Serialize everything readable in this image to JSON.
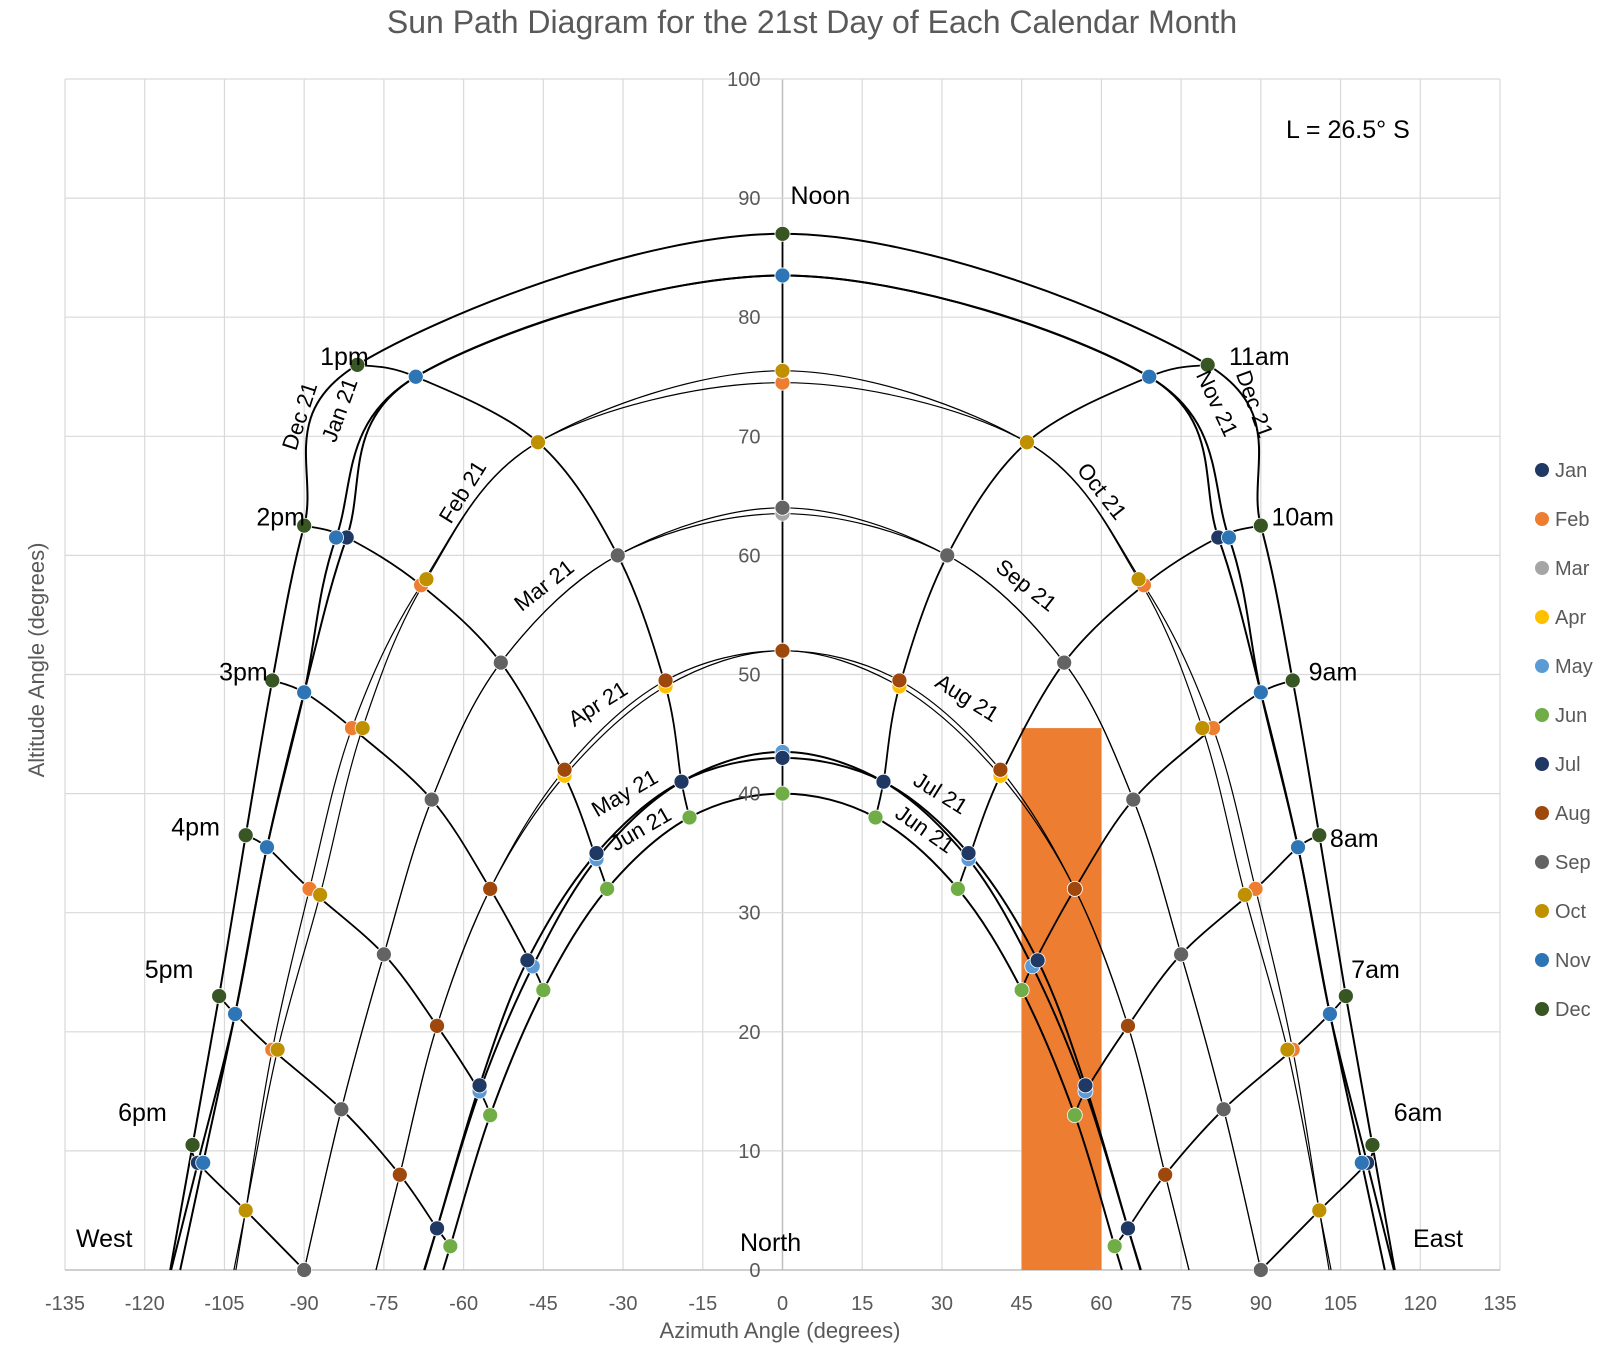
{
  "chart_data": {
    "type": "scatter",
    "title": "Sun Path Diagram for the 21st Day of Each Calendar Month",
    "xlabel": "Azimuth Angle (degrees)",
    "ylabel": "Altitude Angle (degrees)",
    "xlim": [
      -135,
      135
    ],
    "ylim": [
      0,
      100
    ],
    "x_ticks": [
      "-135",
      "-120",
      "-105",
      "-90",
      "-75",
      "-60",
      "-45",
      "-30",
      "-15",
      "0",
      "15",
      "30",
      "45",
      "60",
      "75",
      "90",
      "105",
      "120",
      "135"
    ],
    "y_ticks": [
      "0",
      "10",
      "20",
      "30",
      "40",
      "50",
      "60",
      "70",
      "80",
      "90",
      "100"
    ],
    "grid": true,
    "legend_position": "right",
    "latitude_label": "L = 26.5° S",
    "direction_labels": {
      "west": "West",
      "north": "North",
      "east": "East"
    },
    "hour_labels": [
      "Noon",
      "1pm",
      "2pm",
      "3pm",
      "4pm",
      "5pm",
      "6pm",
      "11am",
      "10am",
      "9am",
      "8am",
      "7am",
      "6am"
    ],
    "hour_label_positions": [
      {
        "label": "Noon",
        "x": 1.5,
        "y": 89.5
      },
      {
        "label": "1pm",
        "x": -87,
        "y": 76
      },
      {
        "label": "2pm",
        "x": -99,
        "y": 62.5
      },
      {
        "label": "3pm",
        "x": -106,
        "y": 49.5
      },
      {
        "label": "4pm",
        "x": -115,
        "y": 36.5
      },
      {
        "label": "5pm",
        "x": -120,
        "y": 24.5
      },
      {
        "label": "6pm",
        "x": -125,
        "y": 12.5
      },
      {
        "label": "11am",
        "x": 84,
        "y": 76
      },
      {
        "label": "10am",
        "x": 92,
        "y": 62.5
      },
      {
        "label": "9am",
        "x": 99,
        "y": 49.5
      },
      {
        "label": "8am",
        "x": 103,
        "y": 35.5
      },
      {
        "label": "7am",
        "x": 107,
        "y": 24.5
      },
      {
        "label": "6am",
        "x": 115,
        "y": 12.5
      }
    ],
    "curve_labels": [
      {
        "label": "Dec 21",
        "x": -89.5,
        "y": 71.5,
        "angle": -72
      },
      {
        "label": "Jan 21",
        "x": -82,
        "y": 72,
        "angle": -70
      },
      {
        "label": "Feb 21",
        "x": -59,
        "y": 65,
        "angle": -58
      },
      {
        "label": "Mar 21",
        "x": -44,
        "y": 57,
        "angle": -38
      },
      {
        "label": "Apr 21",
        "x": -34,
        "y": 47,
        "angle": -32
      },
      {
        "label": "May 21",
        "x": -29,
        "y": 39.5,
        "angle": -30
      },
      {
        "label": "Jun 21",
        "x": -26,
        "y": 36.5,
        "angle": -30
      },
      {
        "label": "Nov 21",
        "x": 80.5,
        "y": 72.5,
        "angle": 65
      },
      {
        "label": "Dec 21",
        "x": 87.5,
        "y": 72.5,
        "angle": 70
      },
      {
        "label": "Oct 21",
        "x": 59,
        "y": 65,
        "angle": 52
      },
      {
        "label": "Sep 21",
        "x": 45,
        "y": 57,
        "angle": 38
      },
      {
        "label": "Aug 21",
        "x": 34,
        "y": 47.5,
        "angle": 32
      },
      {
        "label": "Jul 21",
        "x": 29,
        "y": 39.5,
        "angle": 32
      },
      {
        "label": "Jun 21",
        "x": 26,
        "y": 36.5,
        "angle": 35
      }
    ],
    "highlight_rect": {
      "x_range": [
        45,
        60
      ],
      "y_range": [
        0,
        45.5
      ],
      "color": "#ed7d31"
    },
    "series": [
      {
        "name": "Jan",
        "color": "#1f3864",
        "x": [
          -110,
          -103,
          -97,
          -90,
          -82,
          -69,
          0,
          69,
          82,
          90,
          97,
          103,
          110
        ],
        "y": [
          9,
          21.5,
          35.5,
          48.5,
          61.5,
          75,
          83.5,
          75,
          61.5,
          48.5,
          35.5,
          21.5,
          9
        ]
      },
      {
        "name": "Feb",
        "color": "#ed7d31",
        "x": [
          -101,
          -96,
          -89,
          -81,
          -68,
          -46,
          0,
          46,
          68,
          81,
          89,
          96,
          101
        ],
        "y": [
          5,
          18.5,
          32,
          45.5,
          57.5,
          69.5,
          74.5,
          69.5,
          57.5,
          45.5,
          32,
          18.5,
          5
        ]
      },
      {
        "name": "Mar",
        "color": "#a5a5a5",
        "x": [
          -90,
          -83,
          -75,
          -66,
          -53,
          -31,
          0,
          31,
          53,
          66,
          75,
          83,
          90
        ],
        "y": [
          0,
          13.5,
          26.5,
          39.5,
          51,
          60,
          63.5,
          60,
          51,
          39.5,
          26.5,
          13.5,
          0
        ]
      },
      {
        "name": "Apr",
        "color": "#ffc000",
        "x": [
          -72,
          -65,
          -55,
          -41,
          -22,
          0,
          22,
          41,
          55,
          65,
          72
        ],
        "y": [
          8,
          20.5,
          32,
          41.5,
          49,
          52,
          49,
          41.5,
          32,
          20.5,
          8
        ]
      },
      {
        "name": "May",
        "color": "#5b9bd5",
        "x": [
          -65,
          -57,
          -47,
          -35,
          -19,
          0,
          19,
          35,
          47,
          57,
          65
        ],
        "y": [
          3.5,
          15,
          25.5,
          34.5,
          41,
          43.5,
          41,
          34.5,
          25.5,
          15,
          3.5
        ]
      },
      {
        "name": "Jun",
        "color": "#70ad47",
        "x": [
          -62.5,
          -55,
          -45,
          -33,
          -17.5,
          0,
          17.5,
          33,
          45,
          55,
          62.5
        ],
        "y": [
          2,
          13,
          23.5,
          32,
          38,
          40,
          38,
          32,
          23.5,
          13,
          2
        ]
      },
      {
        "name": "Jul",
        "color": "#203864",
        "x": [
          -65,
          -57,
          -48,
          -35,
          -19,
          0,
          19,
          35,
          48,
          57,
          65
        ],
        "y": [
          3.5,
          15.5,
          26,
          35,
          41,
          43,
          41,
          35,
          26,
          15.5,
          3.5
        ]
      },
      {
        "name": "Aug",
        "color": "#9e480e",
        "x": [
          -72,
          -65,
          -55,
          -41,
          -22,
          0,
          22,
          41,
          55,
          65,
          72
        ],
        "y": [
          8,
          20.5,
          32,
          42,
          49.5,
          52,
          49.5,
          42,
          32,
          20.5,
          8
        ]
      },
      {
        "name": "Sep",
        "color": "#636363",
        "x": [
          -90,
          -83,
          -75,
          -66,
          -53,
          -31,
          0,
          31,
          53,
          66,
          75,
          83,
          90
        ],
        "y": [
          0,
          13.5,
          26.5,
          39.5,
          51,
          60,
          64,
          60,
          51,
          39.5,
          26.5,
          13.5,
          0
        ]
      },
      {
        "name": "Oct",
        "color": "#bf9000",
        "x": [
          -101,
          -95,
          -87,
          -79,
          -67,
          -46,
          0,
          46,
          67,
          79,
          87,
          95,
          101
        ],
        "y": [
          5,
          18.5,
          31.5,
          45.5,
          58,
          69.5,
          75.5,
          69.5,
          58,
          45.5,
          31.5,
          18.5,
          5
        ]
      },
      {
        "name": "Nov",
        "color": "#2e75b6",
        "x": [
          -109,
          -103,
          -97,
          -90,
          -84,
          -69,
          0,
          69,
          84,
          90,
          97,
          103,
          109
        ],
        "y": [
          9,
          21.5,
          35.5,
          48.5,
          61.5,
          75,
          83.5,
          75,
          61.5,
          48.5,
          35.5,
          21.5,
          9
        ]
      },
      {
        "name": "Dec",
        "color": "#375623",
        "x": [
          -111,
          -106,
          -101,
          -96,
          -90,
          -80,
          0,
          80,
          90,
          96,
          101,
          106,
          111
        ],
        "y": [
          10.5,
          23,
          36.5,
          49.5,
          62.5,
          76,
          87,
          76,
          62.5,
          49.5,
          36.5,
          23,
          10.5
        ]
      }
    ]
  }
}
